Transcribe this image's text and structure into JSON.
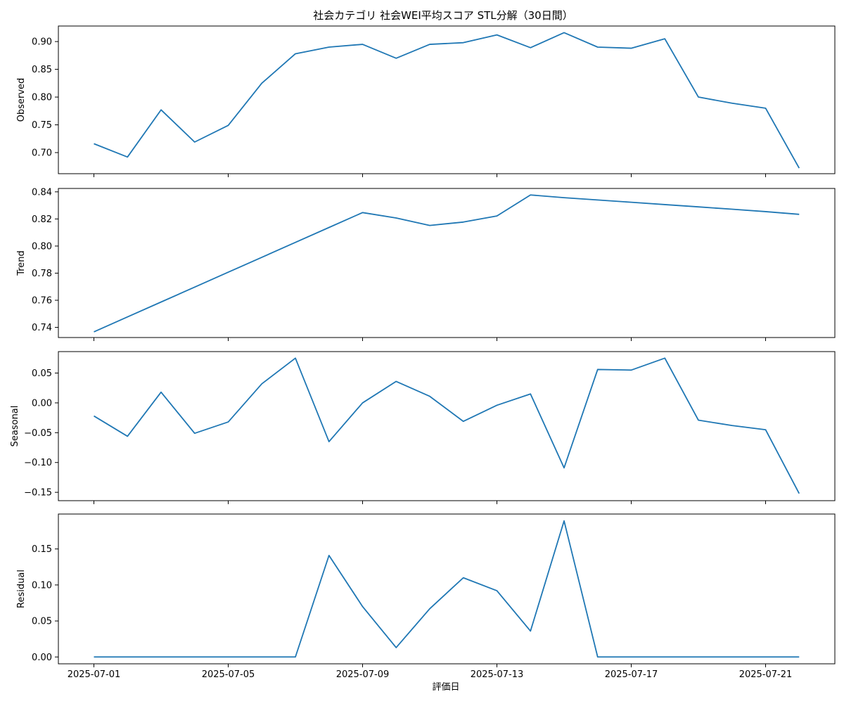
{
  "chart_data": {
    "type": "line",
    "title": "社会カテゴリ 社会WEI平均スコア STL分解（30日間）",
    "xlabel": "評価日",
    "x": [
      "2025-07-01",
      "2025-07-02",
      "2025-07-03",
      "2025-07-04",
      "2025-07-05",
      "2025-07-06",
      "2025-07-07",
      "2025-07-08",
      "2025-07-09",
      "2025-07-10",
      "2025-07-11",
      "2025-07-12",
      "2025-07-13",
      "2025-07-14",
      "2025-07-15",
      "2025-07-16",
      "2025-07-17",
      "2025-07-18",
      "2025-07-19",
      "2025-07-20",
      "2025-07-21",
      "2025-07-22"
    ],
    "xticks": [
      "2025-07-01",
      "2025-07-05",
      "2025-07-09",
      "2025-07-13",
      "2025-07-17",
      "2025-07-21"
    ],
    "line_color": "#1f77b4",
    "grid": false,
    "panels": [
      {
        "ylabel": "Observed",
        "ylim": [
          0.662,
          0.928
        ],
        "yticks": [
          "0.70",
          "0.75",
          "0.80",
          "0.85",
          "0.90"
        ],
        "values": [
          0.716,
          0.692,
          0.777,
          0.719,
          0.749,
          0.825,
          0.878,
          0.89,
          0.895,
          0.87,
          0.895,
          0.898,
          0.912,
          0.889,
          0.916,
          0.89,
          0.888,
          0.905,
          0.8,
          0.789,
          0.78,
          0.672
        ]
      },
      {
        "ylabel": "Trend",
        "ylim": [
          0.7325,
          0.8425
        ],
        "yticks": [
          "0.74",
          "0.76",
          "0.78",
          "0.80",
          "0.82",
          "0.84"
        ],
        "values": [
          0.7367,
          0.7477,
          0.7587,
          0.7697,
          0.7807,
          0.7917,
          0.8027,
          0.8137,
          0.8247,
          0.8207,
          0.8152,
          0.8177,
          0.8222,
          0.8377,
          0.8357,
          0.834,
          0.8323,
          0.8306,
          0.8289,
          0.8272,
          0.8254,
          0.8234
        ]
      },
      {
        "ylabel": "Seasonal",
        "ylim": [
          -0.164,
          0.086
        ],
        "yticks": [
          "−0.15",
          "−0.10",
          "−0.05",
          "0.00",
          "0.05"
        ],
        "values": [
          -0.022,
          -0.056,
          0.018,
          -0.051,
          -0.032,
          0.032,
          0.075,
          -0.065,
          0.0,
          0.036,
          0.011,
          -0.031,
          -0.004,
          0.015,
          -0.109,
          0.056,
          0.055,
          0.075,
          -0.029,
          -0.038,
          -0.045,
          -0.152
        ]
      },
      {
        "ylabel": "Residual",
        "ylim": [
          -0.0095,
          0.1985
        ],
        "yticks": [
          "0.00",
          "0.05",
          "0.10",
          "0.15"
        ],
        "values": [
          0,
          0,
          0,
          0,
          0,
          0,
          0,
          0.141,
          0.07,
          0.013,
          0.067,
          0.11,
          0.092,
          0.036,
          0.189,
          0,
          0,
          0,
          0,
          0,
          0,
          0
        ]
      }
    ]
  }
}
